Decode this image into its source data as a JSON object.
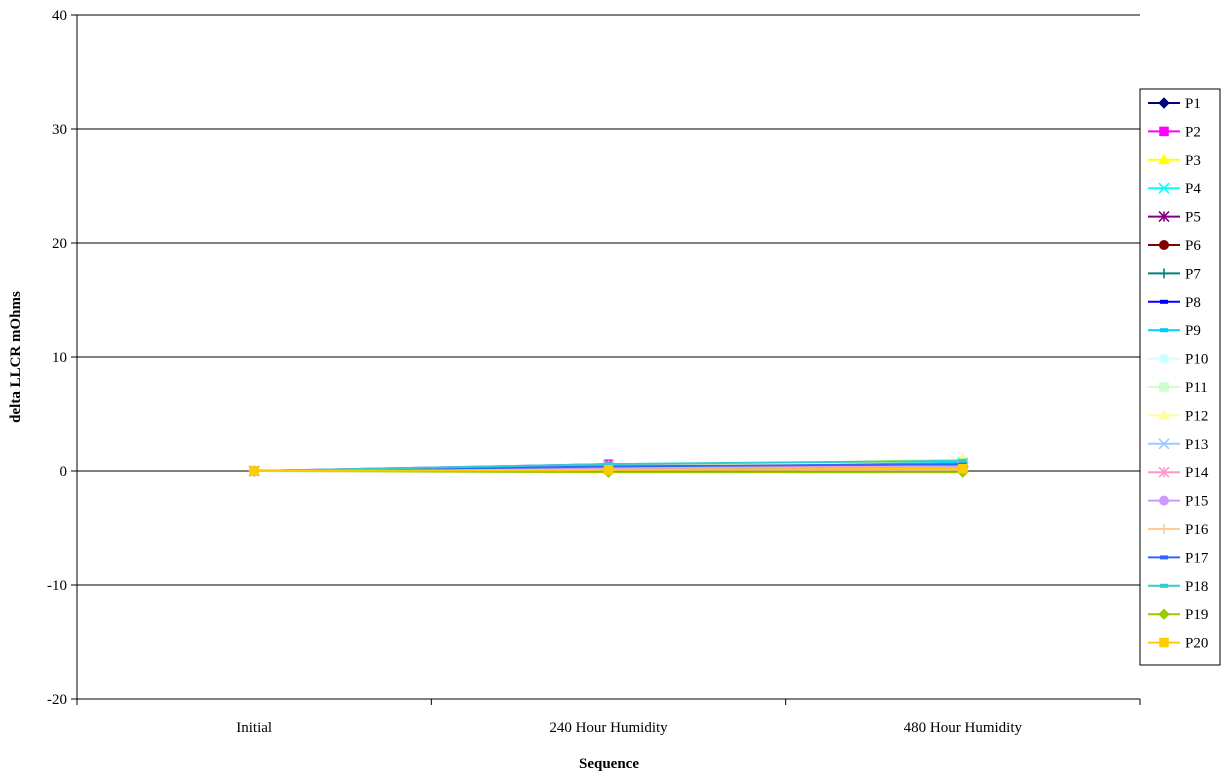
{
  "chart_data": {
    "type": "line",
    "title": "",
    "xlabel": "Sequence",
    "ylabel": "delta LLCR mOhms",
    "categories": [
      "Initial",
      "240 Hour Humidity",
      "480 Hour Humidity"
    ],
    "ylim": [
      -20,
      40
    ],
    "yticks": [
      -20,
      -10,
      0,
      10,
      20,
      30,
      40
    ],
    "grid": "horizontal",
    "legend_position": "right",
    "series": [
      {
        "name": "P1",
        "values": [
          0,
          0.3,
          0.4
        ],
        "color": "#000080",
        "marker": "diamond"
      },
      {
        "name": "P2",
        "values": [
          0,
          0.6,
          0.5
        ],
        "color": "#FF00FF",
        "marker": "square"
      },
      {
        "name": "P3",
        "values": [
          0,
          0.4,
          1.0
        ],
        "color": "#FFFF00",
        "marker": "triangle"
      },
      {
        "name": "P4",
        "values": [
          0,
          0.5,
          0.7
        ],
        "color": "#00FFFF",
        "marker": "x"
      },
      {
        "name": "P5",
        "values": [
          0,
          0.3,
          0.4
        ],
        "color": "#800080",
        "marker": "star"
      },
      {
        "name": "P6",
        "values": [
          0,
          0.2,
          0.2
        ],
        "color": "#800000",
        "marker": "circle"
      },
      {
        "name": "P7",
        "values": [
          0,
          0.3,
          0.5
        ],
        "color": "#008080",
        "marker": "plus"
      },
      {
        "name": "P8",
        "values": [
          0,
          0.2,
          0.3
        ],
        "color": "#0000FF",
        "marker": "dash"
      },
      {
        "name": "P9",
        "values": [
          0,
          0.5,
          0.8
        ],
        "color": "#00CCFF",
        "marker": "dash"
      },
      {
        "name": "P10",
        "values": [
          0,
          0.3,
          0.3
        ],
        "color": "#CCFFFF",
        "marker": "circle"
      },
      {
        "name": "P11",
        "values": [
          0,
          0.2,
          0.2
        ],
        "color": "#CCFFCC",
        "marker": "square"
      },
      {
        "name": "P12",
        "values": [
          0,
          0.4,
          0.9
        ],
        "color": "#FFFF99",
        "marker": "triangle"
      },
      {
        "name": "P13",
        "values": [
          0,
          0.3,
          0.4
        ],
        "color": "#99CCFF",
        "marker": "x"
      },
      {
        "name": "P14",
        "values": [
          0,
          0.5,
          0.3
        ],
        "color": "#FF99CC",
        "marker": "star"
      },
      {
        "name": "P15",
        "values": [
          0,
          0.2,
          0.2
        ],
        "color": "#CC99FF",
        "marker": "circle"
      },
      {
        "name": "P16",
        "values": [
          0,
          0.1,
          0.1
        ],
        "color": "#FFCC99",
        "marker": "plus"
      },
      {
        "name": "P17",
        "values": [
          0,
          0.4,
          0.6
        ],
        "color": "#3366FF",
        "marker": "dash"
      },
      {
        "name": "P18",
        "values": [
          0,
          0.6,
          0.9
        ],
        "color": "#33CCCC",
        "marker": "dash"
      },
      {
        "name": "P19",
        "values": [
          0,
          -0.1,
          -0.1
        ],
        "color": "#99CC00",
        "marker": "diamond"
      },
      {
        "name": "P20",
        "values": [
          0,
          0.1,
          0.2
        ],
        "color": "#FFCC00",
        "marker": "square"
      }
    ]
  }
}
